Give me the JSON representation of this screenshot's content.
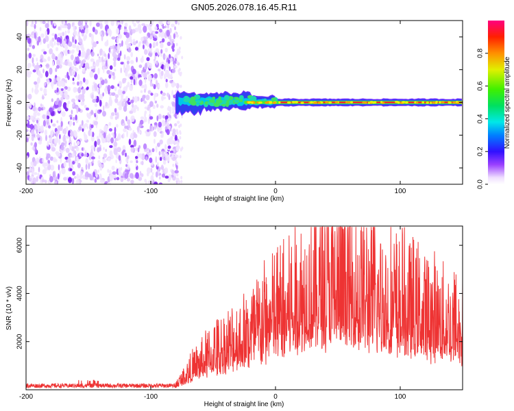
{
  "title": "GN05.2026.078.16.45.R11",
  "chart_data": [
    {
      "type": "heatmap",
      "name": "spectrogram",
      "xlabel": "Height of straight line (km)",
      "ylabel": "Frequency (Hz)",
      "xlim": [
        -200,
        150
      ],
      "ylim": [
        -50,
        50
      ],
      "xticks": [
        -200,
        -100,
        0,
        100
      ],
      "yticks": [
        -40,
        -20,
        0,
        20,
        40
      ],
      "noise_region_x": [
        -200,
        -80
      ],
      "signal_start_x": -80,
      "signal_center_hz": 0,
      "colorbar": {
        "label": "Normalized spectral amplitude",
        "range": [
          0,
          1
        ],
        "ticks": [
          0.0,
          0.2,
          0.4,
          0.6,
          0.8
        ]
      }
    },
    {
      "type": "line",
      "name": "snr",
      "xlabel": "Height of straight line (km)",
      "ylabel": "SNR (10 * v/v)",
      "xlim": [
        -200,
        150
      ],
      "ylim": [
        0,
        6800
      ],
      "xticks": [
        -200,
        -100,
        0,
        100
      ],
      "yticks": [
        2000,
        4000,
        6000
      ],
      "color": "#ee3333",
      "envelope": [
        {
          "x": -200,
          "y": 200
        },
        {
          "x": -80,
          "y": 200
        },
        {
          "x": -70,
          "y": 700
        },
        {
          "x": -50,
          "y": 1500
        },
        {
          "x": -30,
          "y": 2000
        },
        {
          "x": -15,
          "y": 2600
        },
        {
          "x": 0,
          "y": 3100
        },
        {
          "x": 20,
          "y": 3800
        },
        {
          "x": 40,
          "y": 4300
        },
        {
          "x": 60,
          "y": 4100
        },
        {
          "x": 80,
          "y": 3700
        },
        {
          "x": 100,
          "y": 3400
        },
        {
          "x": 120,
          "y": 3000
        },
        {
          "x": 150,
          "y": 2600
        }
      ]
    }
  ]
}
